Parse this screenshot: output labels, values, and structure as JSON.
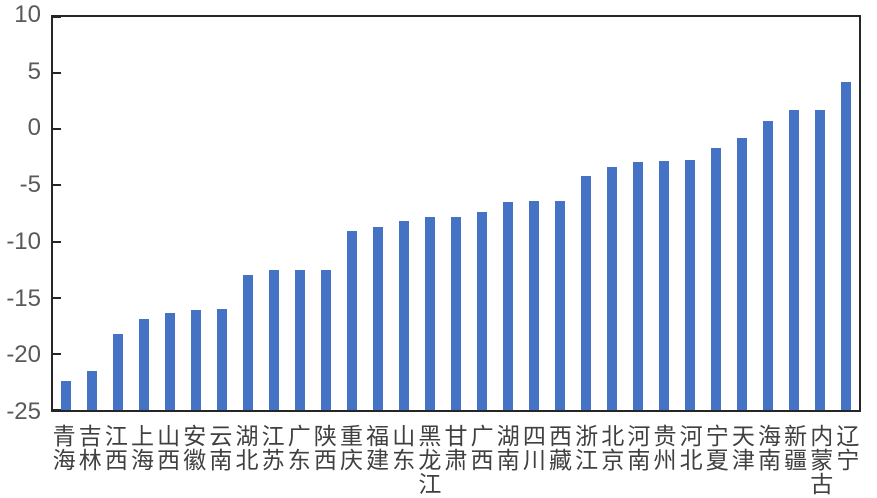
{
  "chart_data": {
    "type": "bar",
    "title": "",
    "xlabel": "",
    "ylabel": "",
    "categories": [
      "青海",
      "吉林",
      "江西",
      "上海",
      "山西",
      "安徽",
      "云南",
      "湖北",
      "江苏",
      "广东",
      "陕西",
      "重庆",
      "福建",
      "山东",
      "黑龙江",
      "甘肃",
      "广西",
      "湖南",
      "四川",
      "西藏",
      "浙江",
      "北京",
      "河南",
      "贵州",
      "河北",
      "宁夏",
      "天津",
      "海南",
      "新疆",
      "内蒙古",
      "辽宁"
    ],
    "values": [
      -22.4,
      -21.5,
      -18.2,
      -16.9,
      -16.4,
      -16.1,
      -16.0,
      -13.0,
      -12.5,
      -12.5,
      -12.5,
      -9.1,
      -8.7,
      -8.2,
      -7.8,
      -7.8,
      -7.4,
      -6.5,
      -6.4,
      -6.4,
      -4.2,
      -3.4,
      -2.9,
      -2.8,
      -2.7,
      -1.7,
      -0.8,
      0.7,
      1.7,
      1.7,
      4.2
    ],
    "ylim": [
      -25,
      10
    ],
    "yticks": [
      10,
      5,
      0,
      -5,
      -10,
      -15,
      -20,
      -25
    ],
    "bar_base": -25,
    "grid": false,
    "legend_position": "none",
    "colors": {
      "bar": "#4472C4",
      "axis": "#262626",
      "y_tick_label": "#595959",
      "x_label": "#404040",
      "background": "#ffffff"
    }
  }
}
